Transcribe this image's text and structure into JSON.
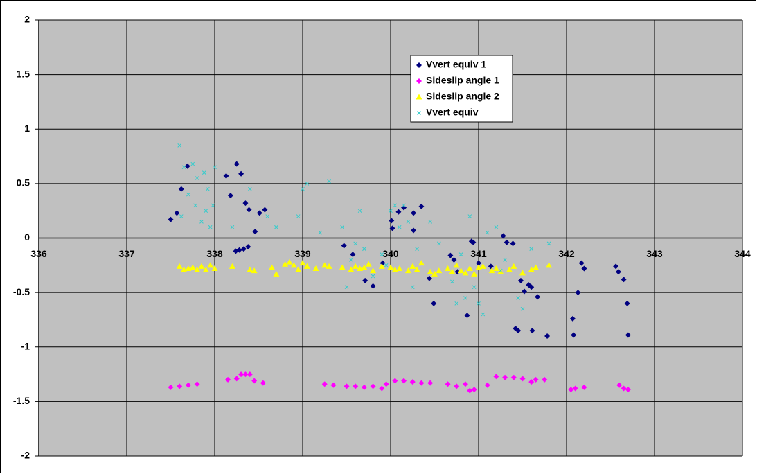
{
  "chart_data": {
    "type": "scatter",
    "xlim": [
      336,
      344
    ],
    "xticks": [
      336,
      337,
      338,
      339,
      340,
      341,
      342,
      343,
      344
    ],
    "ylim": [
      -2,
      2
    ],
    "yticks": [
      -2,
      -1.5,
      -1,
      -0.5,
      0,
      0.5,
      1,
      1.5,
      2
    ],
    "grid": true,
    "legend_position": "upper-center-right",
    "series": [
      {
        "name": "Vvert equiv 1",
        "color": "#000080",
        "marker": "diamond",
        "x": [
          337.5,
          337.57,
          337.62,
          337.69,
          338.13,
          338.25,
          338.3,
          338.18,
          338.35,
          338.39,
          338.46,
          338.51,
          338.57,
          338.24,
          338.28,
          338.33,
          338.38,
          339.47,
          339.57,
          339.71,
          339.8,
          339.91,
          340.01,
          340.02,
          340.09,
          340.15,
          340.26,
          340.26,
          340.35,
          340.44,
          340.49,
          340.68,
          340.72,
          340.76,
          340.87,
          340.92,
          340.94,
          341.0,
          341.14,
          341.28,
          341.32,
          341.39,
          341.42,
          341.45,
          341.48,
          341.52,
          341.57,
          341.6,
          341.61,
          341.67,
          341.78,
          342.07,
          342.08,
          342.13,
          342.17,
          342.2,
          342.56,
          342.59,
          342.65,
          342.69,
          342.7
        ],
        "values": [
          0.17,
          0.23,
          0.45,
          0.66,
          0.57,
          0.68,
          0.59,
          0.39,
          0.32,
          0.26,
          0.06,
          0.23,
          0.26,
          -0.12,
          -0.11,
          -0.1,
          -0.08,
          -0.07,
          -0.15,
          -0.39,
          -0.44,
          -0.23,
          0.16,
          0.09,
          0.24,
          0.28,
          0.23,
          0.07,
          0.29,
          -0.37,
          -0.6,
          -0.16,
          -0.2,
          -0.31,
          -0.71,
          -0.03,
          -0.04,
          -0.23,
          -0.26,
          0.02,
          -0.04,
          -0.05,
          -0.83,
          -0.85,
          -0.39,
          -0.49,
          -0.43,
          -0.45,
          -0.85,
          -0.54,
          -0.9,
          -0.74,
          -0.89,
          -0.5,
          -0.23,
          -0.28,
          -0.26,
          -0.31,
          -0.38,
          -0.6,
          -0.89
        ]
      },
      {
        "name": "Sideslip angle 1",
        "color": "#ff00ff",
        "marker": "diamond",
        "x": [
          337.5,
          337.6,
          337.7,
          337.8,
          338.15,
          338.25,
          338.3,
          338.35,
          338.4,
          338.45,
          338.55,
          339.25,
          339.35,
          339.5,
          339.6,
          339.7,
          339.8,
          339.9,
          339.95,
          340.05,
          340.15,
          340.25,
          340.35,
          340.45,
          340.65,
          340.75,
          340.85,
          340.9,
          340.95,
          341.1,
          341.2,
          341.3,
          341.4,
          341.5,
          341.6,
          341.65,
          341.75,
          342.05,
          342.1,
          342.2,
          342.6,
          342.65,
          342.7
        ],
        "values": [
          -1.37,
          -1.36,
          -1.35,
          -1.34,
          -1.3,
          -1.29,
          -1.25,
          -1.25,
          -1.25,
          -1.31,
          -1.33,
          -1.34,
          -1.35,
          -1.36,
          -1.36,
          -1.37,
          -1.36,
          -1.38,
          -1.34,
          -1.31,
          -1.31,
          -1.32,
          -1.33,
          -1.33,
          -1.34,
          -1.36,
          -1.34,
          -1.4,
          -1.39,
          -1.35,
          -1.27,
          -1.28,
          -1.28,
          -1.29,
          -1.32,
          -1.3,
          -1.3,
          -1.39,
          -1.38,
          -1.37,
          -1.35,
          -1.38,
          -1.39
        ]
      },
      {
        "name": "Sideslip angle 2",
        "color": "#ffff00",
        "marker": "triangle",
        "x": [
          337.6,
          337.65,
          337.7,
          337.75,
          337.8,
          337.85,
          337.9,
          337.95,
          338.0,
          338.2,
          338.4,
          338.45,
          338.65,
          338.7,
          338.8,
          338.85,
          338.9,
          338.95,
          339.0,
          339.05,
          339.15,
          339.25,
          339.3,
          339.45,
          339.55,
          339.6,
          339.65,
          339.7,
          339.75,
          339.8,
          339.9,
          340.0,
          340.05,
          340.1,
          340.2,
          340.25,
          340.3,
          340.35,
          340.45,
          340.5,
          340.55,
          340.65,
          340.7,
          340.75,
          340.8,
          340.85,
          340.9,
          340.95,
          341.0,
          341.05,
          341.15,
          341.2,
          341.25,
          341.35,
          341.4,
          341.5,
          341.6,
          341.65,
          341.8
        ],
        "values": [
          -0.26,
          -0.29,
          -0.28,
          -0.27,
          -0.29,
          -0.26,
          -0.29,
          -0.25,
          -0.28,
          -0.26,
          -0.29,
          -0.3,
          -0.27,
          -0.33,
          -0.24,
          -0.22,
          -0.25,
          -0.29,
          -0.23,
          -0.26,
          -0.28,
          -0.25,
          -0.26,
          -0.27,
          -0.29,
          -0.26,
          -0.28,
          -0.27,
          -0.24,
          -0.3,
          -0.26,
          -0.27,
          -0.29,
          -0.28,
          -0.3,
          -0.26,
          -0.29,
          -0.23,
          -0.31,
          -0.33,
          -0.3,
          -0.28,
          -0.31,
          -0.25,
          -0.3,
          -0.32,
          -0.28,
          -0.33,
          -0.27,
          -0.26,
          -0.3,
          -0.28,
          -0.31,
          -0.29,
          -0.26,
          -0.32,
          -0.29,
          -0.27,
          -0.25
        ]
      },
      {
        "name": "Vvert equiv",
        "color": "#33cccc",
        "marker": "x",
        "x": [
          337.6,
          337.62,
          337.65,
          337.7,
          337.75,
          337.78,
          337.8,
          337.85,
          337.88,
          337.9,
          337.92,
          337.95,
          337.98,
          338.0,
          338.2,
          338.4,
          338.6,
          338.7,
          338.95,
          339.0,
          339.05,
          339.2,
          339.3,
          339.45,
          339.5,
          339.55,
          339.6,
          339.65,
          339.7,
          339.8,
          339.9,
          339.95,
          340.0,
          340.05,
          340.1,
          340.15,
          340.2,
          340.25,
          340.3,
          340.45,
          340.55,
          340.7,
          340.75,
          340.8,
          340.85,
          340.9,
          340.95,
          341.0,
          341.05,
          341.1,
          341.2,
          341.25,
          341.3,
          341.45,
          341.5,
          341.6,
          341.8
        ],
        "values": [
          0.85,
          0.2,
          0.65,
          0.4,
          0.68,
          0.3,
          0.55,
          0.15,
          0.6,
          0.25,
          0.45,
          0.1,
          0.3,
          0.65,
          0.1,
          0.45,
          0.2,
          0.1,
          0.2,
          0.45,
          0.5,
          0.05,
          0.52,
          0.1,
          -0.45,
          -0.2,
          -0.05,
          0.25,
          -0.1,
          -0.35,
          -0.15,
          -0.25,
          0.25,
          0.3,
          0.1,
          0.3,
          0.15,
          -0.45,
          -0.1,
          0.15,
          -0.05,
          -0.4,
          -0.6,
          -0.15,
          -0.55,
          0.2,
          -0.45,
          -0.6,
          -0.7,
          0.05,
          0.1,
          -0.3,
          -0.2,
          -0.55,
          -0.65,
          -0.1,
          -0.05
        ]
      }
    ]
  }
}
